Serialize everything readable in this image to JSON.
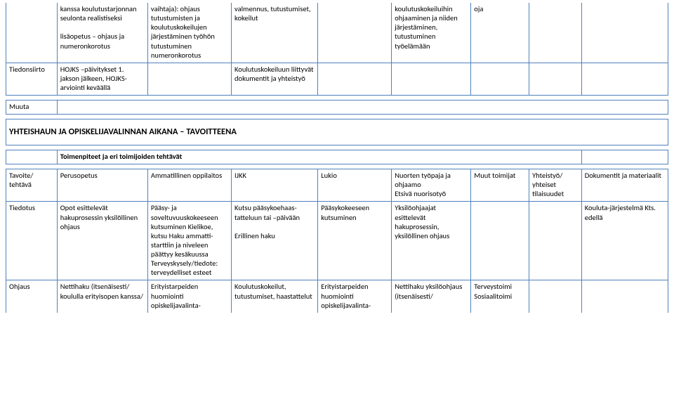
{
  "colors": {
    "border": "#4f81bd",
    "background": "#ffffff",
    "text": "#000000"
  },
  "top_table": {
    "rows": [
      {
        "c0": "",
        "c1": "kanssa koulutustarjonnan seulonta realistiseksi\n\nlisäopetus – ohjaus ja numeronkorotus",
        "c2": "vaihtaja): ohjaus tutustumisten ja koulutuskokeilujen järjestäminen työhön tutustuminen numeronkorotus",
        "c3": "valmennus, tutustumiset, kokeilut",
        "c4": "",
        "c5": "koulutuskokeiluihin ohjaaminen ja niiden järjestäminen, tutustuminen työelämään",
        "c6": "oja",
        "c7": "",
        "c8": ""
      },
      {
        "c0": "Tiedonsiirto",
        "c1": "HOJKS –päivitykset 1. jakson jälkeen, HOJKS-arviointi keväällä",
        "c2": "",
        "c3": "Koulutuskokeiluun liittyvät dokumentit ja yhteistyö",
        "c4": "",
        "c5": "",
        "c6": "",
        "c7": "",
        "c8": ""
      }
    ]
  },
  "muuta_label": "Muuta",
  "section_heading": "YHTEISHAUN JA OPISKELIJAVALINNAN AIKANA – TAVOITTEENA",
  "sub_heading": "Toimenpiteet ja eri toimijoiden tehtävät",
  "table2": {
    "header": {
      "c0": "Tavoite/ tehtävä",
      "c1": "Perusopetus",
      "c2": "Ammatillinen oppilaitos",
      "c3": "IJKK",
      "c4": "Lukio",
      "c5": "Nuorten työpaja ja ohjaamo\nEtsivä nuorisotyö",
      "c6": "Muut toimijat",
      "c7": "Yhteistyö/ yhteiset tilaisuudet",
      "c8": "Dokumentit ja materiaalit"
    },
    "rows": [
      {
        "c0": "Tiedotus",
        "c1": "Opot esittelevät hakuprosessin yksilöllinen ohjaus",
        "c2": "Pääsy- ja soveltuvuuskokeeseen kutsuminen Kielikoe, kutsu Haku ammatti-starttiin ja niveleen päättyy kesäkuussa Terveyskysely/tiedote: terveydelliset esteet",
        "c3": "Kutsu pääsykoehaas-tatteluun tai –päivään\n\nErillinen haku",
        "c4": "Pääsykokeeseen kutsuminen",
        "c5": "Yksilöohjaajat esittelevät hakuprosessin, yksilöllinen ohjaus",
        "c6": "",
        "c7": "",
        "c8": "Kouluta-järjestelmä Kts. edellä"
      },
      {
        "c0": "Ohjaus",
        "c1": "Nettihaku (itsenäisesti/ koululla erityisopen kanssa/",
        "c2": "Erityistarpeiden huomiointi opiskelijavalinta-",
        "c3": "Koulutuskokeilut, tutustumiset, haastattelut",
        "c4": "Erityistarpeiden huomiointi opiskelijavalinta-",
        "c5": "Nettihaku yksilöohjaus (itsenäisesti/",
        "c6": "Terveystoimi Sosiaalitoimi",
        "c7": "",
        "c8": ""
      }
    ]
  }
}
